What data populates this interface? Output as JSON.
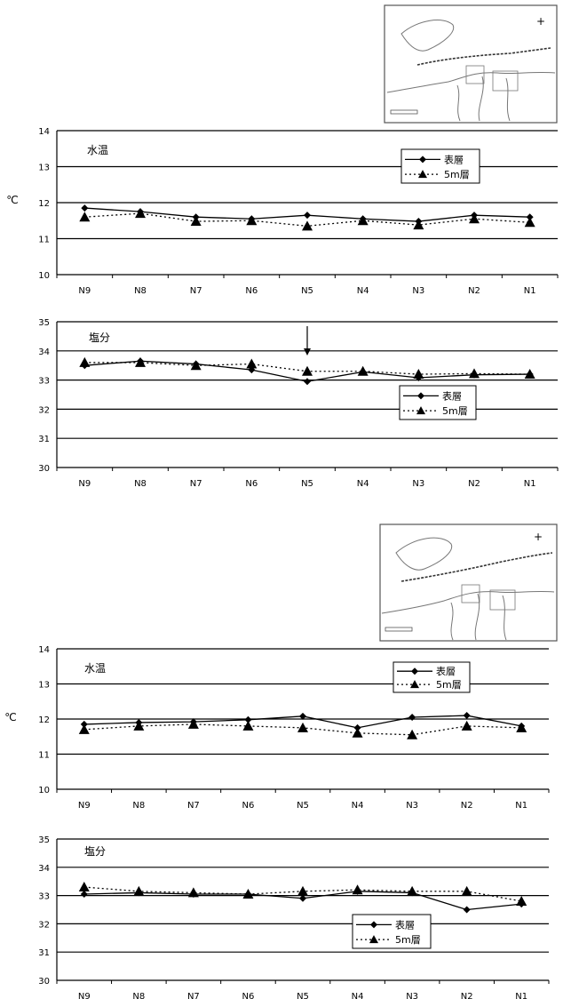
{
  "inset_maps": [
    {
      "symbol": "+"
    },
    {
      "symbol": "+"
    }
  ],
  "legend": {
    "surface": "表層",
    "depth5m": "5m層"
  },
  "unit_label": "℃",
  "chart_data": [
    {
      "type": "line",
      "title": "水温",
      "categories": [
        "N9",
        "N8",
        "N7",
        "N6",
        "N5",
        "N4",
        "N3",
        "N2",
        "N1"
      ],
      "ylim": [
        10,
        14
      ],
      "yticks": [
        "10",
        "11",
        "12",
        "13",
        "14"
      ],
      "ylabel": "℃",
      "grid": true,
      "legend_position": "top-right",
      "series": [
        {
          "name": "表層",
          "values": [
            11.85,
            11.75,
            11.6,
            11.55,
            11.65,
            11.55,
            11.48,
            11.65,
            11.6
          ]
        },
        {
          "name": "5m層",
          "values": [
            11.6,
            11.7,
            11.48,
            11.5,
            11.35,
            11.5,
            11.38,
            11.55,
            11.45
          ]
        }
      ]
    },
    {
      "type": "line",
      "title": "塩分",
      "categories": [
        "N9",
        "N8",
        "N7",
        "N6",
        "N5",
        "N4",
        "N3",
        "N2",
        "N1"
      ],
      "ylim": [
        30,
        35
      ],
      "yticks": [
        "30",
        "31",
        "32",
        "33",
        "34",
        "35"
      ],
      "ylabel": "",
      "grid": true,
      "legend_position": "right",
      "annotation": "arrow-at-N5",
      "series": [
        {
          "name": "表層",
          "values": [
            33.5,
            33.65,
            33.55,
            33.35,
            32.95,
            33.28,
            33.08,
            33.18,
            33.2
          ]
        },
        {
          "name": "5m層",
          "values": [
            33.6,
            33.6,
            33.5,
            33.55,
            33.3,
            33.3,
            33.2,
            33.22,
            33.2
          ]
        }
      ]
    },
    {
      "type": "line",
      "title": "水温",
      "categories": [
        "N9",
        "N8",
        "N7",
        "N6",
        "N5",
        "N4",
        "N3",
        "N2",
        "N1"
      ],
      "ylim": [
        10,
        14
      ],
      "yticks": [
        "10",
        "11",
        "12",
        "13",
        "14"
      ],
      "ylabel": "℃",
      "grid": true,
      "legend_position": "top-right",
      "series": [
        {
          "name": "表層",
          "values": [
            11.85,
            11.9,
            11.92,
            11.98,
            12.08,
            11.75,
            12.05,
            12.1,
            11.8
          ]
        },
        {
          "name": "5m層",
          "values": [
            11.7,
            11.8,
            11.85,
            11.8,
            11.75,
            11.6,
            11.55,
            11.8,
            11.75
          ]
        }
      ]
    },
    {
      "type": "line",
      "title": "塩分",
      "categories": [
        "N9",
        "N8",
        "N7",
        "N6",
        "N5",
        "N4",
        "N3",
        "N2",
        "N1"
      ],
      "ylim": [
        30,
        35
      ],
      "yticks": [
        "30",
        "31",
        "32",
        "33",
        "34",
        "35"
      ],
      "ylabel": "",
      "grid": true,
      "legend_position": "bottom-right",
      "series": [
        {
          "name": "表層",
          "values": [
            33.05,
            33.1,
            33.05,
            33.05,
            32.9,
            33.15,
            33.1,
            32.5,
            32.7
          ]
        },
        {
          "name": "5m層",
          "values": [
            33.3,
            33.15,
            33.1,
            33.05,
            33.15,
            33.2,
            33.15,
            33.15,
            32.8
          ]
        }
      ]
    }
  ]
}
